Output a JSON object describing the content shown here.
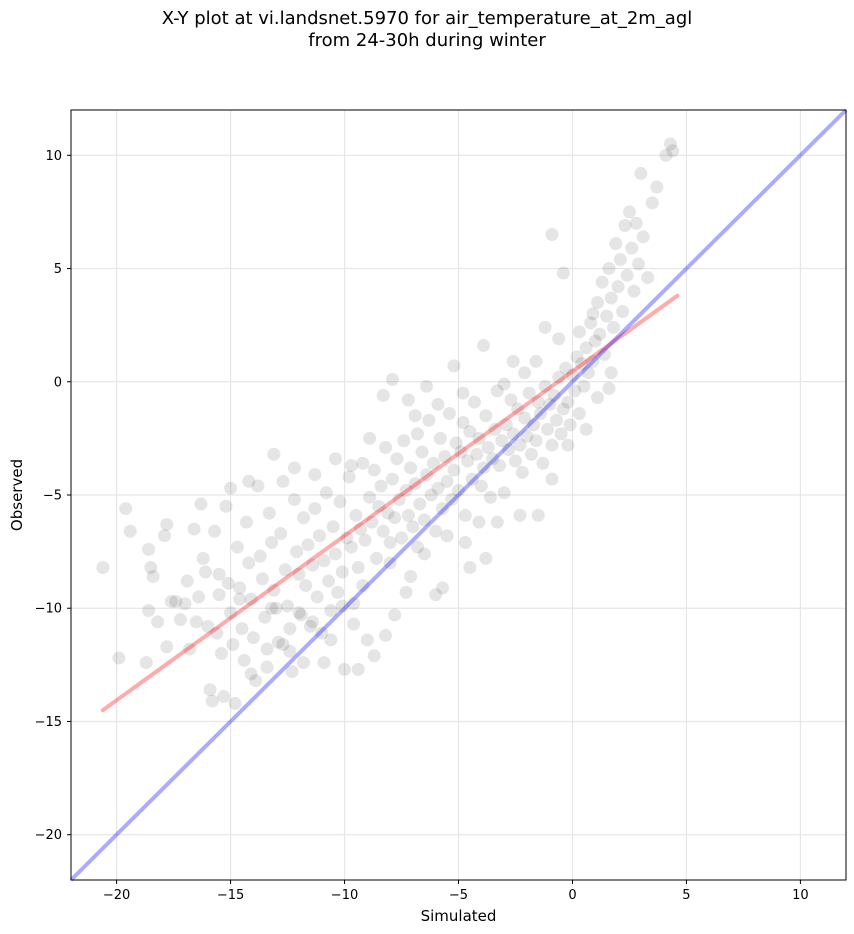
{
  "chart_data": {
    "type": "scatter",
    "title": "X-Y plot at vi.landsnet.5970 for air_temperature_at_2m_agl",
    "subtitle": "from 24-30h during winter",
    "xlabel": "Simulated",
    "ylabel": "Observed",
    "xlim": [
      -22,
      12
    ],
    "ylim": [
      -22,
      12
    ],
    "xticks": [
      -20,
      -15,
      -10,
      -5,
      0,
      5,
      10
    ],
    "yticks": [
      -20,
      -15,
      -10,
      -5,
      0,
      5,
      10
    ],
    "xtick_labels": [
      "−20",
      "−15",
      "−10",
      "−5",
      "0",
      "5",
      "10"
    ],
    "ytick_labels": [
      "−20",
      "−15",
      "−10",
      "−5",
      "0",
      "5",
      "10"
    ],
    "grid": true,
    "point_color": "#000000",
    "point_alpha": 0.1,
    "regression_line": {
      "color": "#ff0000",
      "x": [
        -20.6,
        4.6
      ],
      "y": [
        -14.5,
        3.8
      ]
    },
    "one_to_one_line": {
      "color": "#0000ff",
      "x": [
        -22,
        12
      ],
      "y": [
        -22,
        12
      ]
    },
    "points": [
      [
        -20.6,
        -8.2
      ],
      [
        -19.9,
        -12.2
      ],
      [
        -19.6,
        -5.6
      ],
      [
        -19.4,
        -6.6
      ],
      [
        -18.7,
        -12.4
      ],
      [
        -18.6,
        -10.1
      ],
      [
        -18.6,
        -7.4
      ],
      [
        -18.5,
        -8.2
      ],
      [
        -18.4,
        -8.6
      ],
      [
        -18.2,
        -10.6
      ],
      [
        -17.9,
        -6.8
      ],
      [
        -17.8,
        -6.3
      ],
      [
        -17.8,
        -11.7
      ],
      [
        -17.6,
        -9.7
      ],
      [
        -17.4,
        -9.7
      ],
      [
        -17.2,
        -10.5
      ],
      [
        -17.0,
        -9.8
      ],
      [
        -16.9,
        -8.8
      ],
      [
        -16.8,
        -11.8
      ],
      [
        -16.6,
        -6.5
      ],
      [
        -16.5,
        -10.6
      ],
      [
        -16.4,
        -9.5
      ],
      [
        -16.2,
        -7.8
      ],
      [
        -16.1,
        -8.4
      ],
      [
        -16.0,
        -10.8
      ],
      [
        -15.9,
        -13.6
      ],
      [
        -15.8,
        -14.1
      ],
      [
        -15.7,
        -6.6
      ],
      [
        -15.6,
        -11.1
      ],
      [
        -15.5,
        -9.4
      ],
      [
        -15.4,
        -12.0
      ],
      [
        -15.3,
        -13.9
      ],
      [
        -15.2,
        -5.5
      ],
      [
        -15.1,
        -8.9
      ],
      [
        -15.0,
        -10.2
      ],
      [
        -14.9,
        -11.6
      ],
      [
        -14.8,
        -14.2
      ],
      [
        -14.7,
        -7.3
      ],
      [
        -14.6,
        -9.1
      ],
      [
        -14.5,
        -10.9
      ],
      [
        -14.4,
        -12.3
      ],
      [
        -14.3,
        -6.2
      ],
      [
        -14.2,
        -8.0
      ],
      [
        -14.1,
        -9.6
      ],
      [
        -14.0,
        -11.3
      ],
      [
        -13.9,
        -13.2
      ],
      [
        -13.8,
        -4.6
      ],
      [
        -13.7,
        -7.7
      ],
      [
        -13.6,
        -8.7
      ],
      [
        -13.5,
        -10.4
      ],
      [
        -13.4,
        -12.6
      ],
      [
        -13.3,
        -5.8
      ],
      [
        -13.2,
        -7.1
      ],
      [
        -13.1,
        -9.2
      ],
      [
        -13.0,
        -10.0
      ],
      [
        -12.9,
        -11.5
      ],
      [
        -12.8,
        -6.7
      ],
      [
        -12.7,
        -4.4
      ],
      [
        -12.6,
        -8.3
      ],
      [
        -12.5,
        -9.9
      ],
      [
        -12.4,
        -11.9
      ],
      [
        -12.3,
        -12.8
      ],
      [
        -12.2,
        -5.2
      ],
      [
        -12.1,
        -7.5
      ],
      [
        -12.0,
        -8.5
      ],
      [
        -11.9,
        -10.3
      ],
      [
        -11.8,
        -6.0
      ],
      [
        -11.7,
        -9.0
      ],
      [
        -11.6,
        -7.2
      ],
      [
        -11.5,
        -10.8
      ],
      [
        -11.4,
        -8.1
      ],
      [
        -11.3,
        -5.6
      ],
      [
        -11.2,
        -9.5
      ],
      [
        -11.1,
        -6.8
      ],
      [
        -11.0,
        -11.1
      ],
      [
        -10.9,
        -7.9
      ],
      [
        -10.8,
        -4.9
      ],
      [
        -10.7,
        -8.8
      ],
      [
        -10.6,
        -10.1
      ],
      [
        -10.5,
        -6.4
      ],
      [
        -10.4,
        -7.6
      ],
      [
        -10.3,
        -9.3
      ],
      [
        -10.2,
        -5.3
      ],
      [
        -10.1,
        -8.4
      ],
      [
        -10.0,
        -12.7
      ],
      [
        -9.9,
        -6.9
      ],
      [
        -9.8,
        -4.2
      ],
      [
        -9.7,
        -7.3
      ],
      [
        -9.6,
        -9.8
      ],
      [
        -9.5,
        -5.9
      ],
      [
        -9.4,
        -8.2
      ],
      [
        -9.3,
        -6.5
      ],
      [
        -9.2,
        -3.6
      ],
      [
        -9.1,
        -7.0
      ],
      [
        -9.0,
        -11.4
      ],
      [
        -8.9,
        -5.1
      ],
      [
        -8.8,
        -6.2
      ],
      [
        -8.7,
        -3.9
      ],
      [
        -8.6,
        -7.8
      ],
      [
        -8.5,
        -5.5
      ],
      [
        -8.4,
        -4.6
      ],
      [
        -8.3,
        -6.6
      ],
      [
        -8.2,
        -2.9
      ],
      [
        -8.1,
        -5.8
      ],
      [
        -8.0,
        -7.1
      ],
      [
        -7.9,
        -4.3
      ],
      [
        -7.8,
        -6.0
      ],
      [
        -7.7,
        -3.4
      ],
      [
        -7.6,
        -5.2
      ],
      [
        -7.5,
        -6.9
      ],
      [
        -7.4,
        -2.6
      ],
      [
        -7.3,
        -4.8
      ],
      [
        -7.2,
        -5.9
      ],
      [
        -7.1,
        -3.8
      ],
      [
        -7.0,
        -6.4
      ],
      [
        -6.9,
        -4.5
      ],
      [
        -6.8,
        -2.3
      ],
      [
        -6.7,
        -5.4
      ],
      [
        -6.6,
        -3.1
      ],
      [
        -6.5,
        -6.1
      ],
      [
        -6.4,
        -4.1
      ],
      [
        -6.3,
        -1.7
      ],
      [
        -6.2,
        -5.0
      ],
      [
        -6.1,
        -3.6
      ],
      [
        -6.0,
        -6.6
      ],
      [
        -5.9,
        -4.7
      ],
      [
        -5.8,
        -2.5
      ],
      [
        -5.7,
        -5.6
      ],
      [
        -5.6,
        -3.3
      ],
      [
        -5.5,
        -4.4
      ],
      [
        -5.4,
        -1.4
      ],
      [
        -5.3,
        -5.2
      ],
      [
        -5.2,
        -3.9
      ],
      [
        -5.1,
        -2.7
      ],
      [
        -5.0,
        -4.8
      ],
      [
        -4.9,
        -3.1
      ],
      [
        -4.8,
        -1.8
      ],
      [
        -4.7,
        -5.9
      ],
      [
        -4.6,
        -3.5
      ],
      [
        -4.5,
        -2.2
      ],
      [
        -4.4,
        -4.3
      ],
      [
        -4.3,
        -0.9
      ],
      [
        -4.2,
        -3.2
      ],
      [
        -4.1,
        -2.5
      ],
      [
        -4.0,
        -4.6
      ],
      [
        -3.9,
        -3.8
      ],
      [
        -3.8,
        -1.5
      ],
      [
        -3.7,
        -2.9
      ],
      [
        -3.6,
        -5.1
      ],
      [
        -3.5,
        -3.4
      ],
      [
        -3.4,
        -2.1
      ],
      [
        -3.3,
        -0.4
      ],
      [
        -3.2,
        -3.7
      ],
      [
        -3.1,
        -2.6
      ],
      [
        -3.0,
        -4.9
      ],
      [
        -2.9,
        -1.9
      ],
      [
        -2.8,
        -3.0
      ],
      [
        -2.7,
        -0.8
      ],
      [
        -2.6,
        -2.3
      ],
      [
        -2.5,
        -3.5
      ],
      [
        -2.4,
        -1.2
      ],
      [
        -2.3,
        -2.8
      ],
      [
        -2.2,
        -4.0
      ],
      [
        -2.1,
        -1.6
      ],
      [
        -2.0,
        -2.4
      ],
      [
        -1.9,
        -0.5
      ],
      [
        -1.8,
        -3.2
      ],
      [
        -1.7,
        -1.9
      ],
      [
        -1.6,
        -2.6
      ],
      [
        -1.5,
        -0.9
      ],
      [
        -1.4,
        -1.4
      ],
      [
        -1.3,
        -3.6
      ],
      [
        -1.2,
        -0.2
      ],
      [
        -1.1,
        -2.1
      ],
      [
        -1.0,
        -1.0
      ],
      [
        -0.9,
        -2.8
      ],
      [
        -0.8,
        -0.6
      ],
      [
        -0.7,
        -1.7
      ],
      [
        -0.6,
        0.2
      ],
      [
        -0.5,
        -2.3
      ],
      [
        -0.4,
        -1.2
      ],
      [
        -0.3,
        0.6
      ],
      [
        -0.2,
        -0.9
      ],
      [
        -0.1,
        -1.9
      ],
      [
        0.0,
        0.3
      ],
      [
        0.1,
        -0.4
      ],
      [
        0.2,
        1.1
      ],
      [
        0.3,
        -1.4
      ],
      [
        0.4,
        0.8
      ],
      [
        0.5,
        -0.2
      ],
      [
        0.6,
        1.5
      ],
      [
        0.7,
        0.4
      ],
      [
        0.8,
        2.6
      ],
      [
        0.9,
        0.9
      ],
      [
        1.0,
        1.8
      ],
      [
        1.1,
        3.5
      ],
      [
        1.2,
        2.1
      ],
      [
        1.3,
        4.4
      ],
      [
        1.4,
        1.2
      ],
      [
        1.5,
        2.9
      ],
      [
        1.6,
        5.0
      ],
      [
        1.7,
        3.7
      ],
      [
        1.8,
        2.4
      ],
      [
        1.9,
        6.1
      ],
      [
        2.0,
        4.2
      ],
      [
        2.1,
        5.4
      ],
      [
        2.2,
        3.1
      ],
      [
        2.3,
        6.9
      ],
      [
        2.4,
        4.7
      ],
      [
        2.5,
        7.5
      ],
      [
        2.6,
        5.9
      ],
      [
        2.7,
        4.0
      ],
      [
        2.8,
        7.0
      ],
      [
        2.9,
        5.2
      ],
      [
        3.0,
        9.2
      ],
      [
        3.1,
        6.4
      ],
      [
        3.3,
        4.6
      ],
      [
        3.5,
        7.9
      ],
      [
        3.7,
        8.6
      ],
      [
        4.1,
        10.0
      ],
      [
        4.3,
        10.5
      ],
      [
        4.4,
        10.2
      ],
      [
        -1.2,
        2.4
      ],
      [
        -0.4,
        4.8
      ],
      [
        -0.9,
        6.5
      ],
      [
        -2.6,
        0.9
      ],
      [
        -3.9,
        1.6
      ],
      [
        -5.2,
        0.7
      ],
      [
        -6.4,
        -0.2
      ],
      [
        -7.9,
        0.1
      ],
      [
        -8.3,
        -0.6
      ],
      [
        -8.9,
        -2.5
      ],
      [
        -9.7,
        -3.7
      ],
      [
        -10.4,
        -3.4
      ],
      [
        -11.3,
        -4.1
      ],
      [
        -12.2,
        -3.8
      ],
      [
        -13.1,
        -3.2
      ],
      [
        -14.2,
        -4.4
      ],
      [
        -15.0,
        -4.7
      ],
      [
        -16.3,
        -5.4
      ],
      [
        -11.8,
        -12.4
      ],
      [
        -12.7,
        -11.6
      ],
      [
        -13.4,
        -11.8
      ],
      [
        -14.1,
        -12.9
      ],
      [
        -10.9,
        -12.4
      ],
      [
        -9.4,
        -12.7
      ],
      [
        -8.7,
        -12.1
      ],
      [
        -8.2,
        -11.2
      ],
      [
        -7.3,
        -9.3
      ],
      [
        -6.0,
        -9.4
      ],
      [
        -5.7,
        -9.1
      ],
      [
        -4.7,
        -7.1
      ],
      [
        -4.1,
        -6.2
      ],
      [
        -3.3,
        -6.2
      ],
      [
        -2.3,
        -5.9
      ],
      [
        -1.5,
        -5.9
      ],
      [
        -0.9,
        -4.3
      ],
      [
        -0.2,
        -2.8
      ],
      [
        0.6,
        -2.1
      ],
      [
        1.1,
        -0.7
      ],
      [
        1.6,
        -0.3
      ],
      [
        1.7,
        0.4
      ],
      [
        -3.8,
        -7.8
      ],
      [
        -4.5,
        -8.2
      ],
      [
        -6.5,
        -7.6
      ],
      [
        -7.1,
        -8.6
      ],
      [
        -7.8,
        -10.3
      ],
      [
        -9.6,
        -10.7
      ],
      [
        -10.6,
        -11.4
      ],
      [
        -12.4,
        -10.9
      ],
      [
        -6.9,
        -1.5
      ],
      [
        -7.2,
        -0.8
      ],
      [
        -5.9,
        -1.0
      ],
      [
        -4.8,
        -0.5
      ],
      [
        -3.0,
        -0.1
      ],
      [
        -2.1,
        0.4
      ],
      [
        -1.6,
        0.9
      ],
      [
        -0.6,
        1.9
      ],
      [
        0.3,
        2.2
      ],
      [
        0.9,
        3.0
      ],
      [
        -5.5,
        -6.8
      ],
      [
        -6.8,
        -7.3
      ],
      [
        -8.0,
        -8.0
      ],
      [
        -9.2,
        -9.0
      ],
      [
        -10.1,
        -9.9
      ],
      [
        -11.4,
        -10.6
      ],
      [
        -12.0,
        -10.2
      ],
      [
        -13.2,
        -10.0
      ],
      [
        -14.6,
        -9.6
      ],
      [
        -15.5,
        -8.5
      ]
    ]
  }
}
